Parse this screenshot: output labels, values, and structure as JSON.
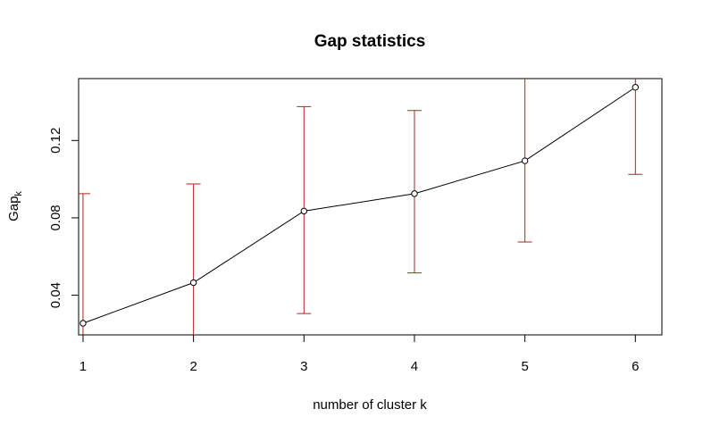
{
  "chart_data": {
    "type": "line",
    "title": "Gap statistics",
    "xlabel": "number of cluster k",
    "ylabel_main": "Gap",
    "ylabel_sub": "k",
    "x": [
      1,
      2,
      3,
      4,
      5,
      6
    ],
    "x_tick_labels": [
      "1",
      "2",
      "3",
      "4",
      "5",
      "6"
    ],
    "y_tick_values": [
      0.04,
      0.08,
      0.12
    ],
    "y_tick_labels": [
      "0.04",
      "0.08",
      "0.12"
    ],
    "xlim": [
      0.96,
      6.24
    ],
    "ylim": [
      0.0195,
      0.152
    ],
    "series": [
      {
        "values": [
          0.0255,
          0.0465,
          0.0835,
          0.0925,
          0.1095,
          0.1475
        ],
        "error_low": [
          0.0175,
          0.0135,
          0.0305,
          0.0515,
          0.0675,
          0.1025
        ],
        "error_high": [
          0.0925,
          0.0975,
          0.1375,
          0.1355,
          0.1525,
          0.1525
        ]
      }
    ],
    "grid": false,
    "colors": {
      "line": "#000000",
      "errorbar": "#b22222",
      "frame": "#000000"
    }
  }
}
